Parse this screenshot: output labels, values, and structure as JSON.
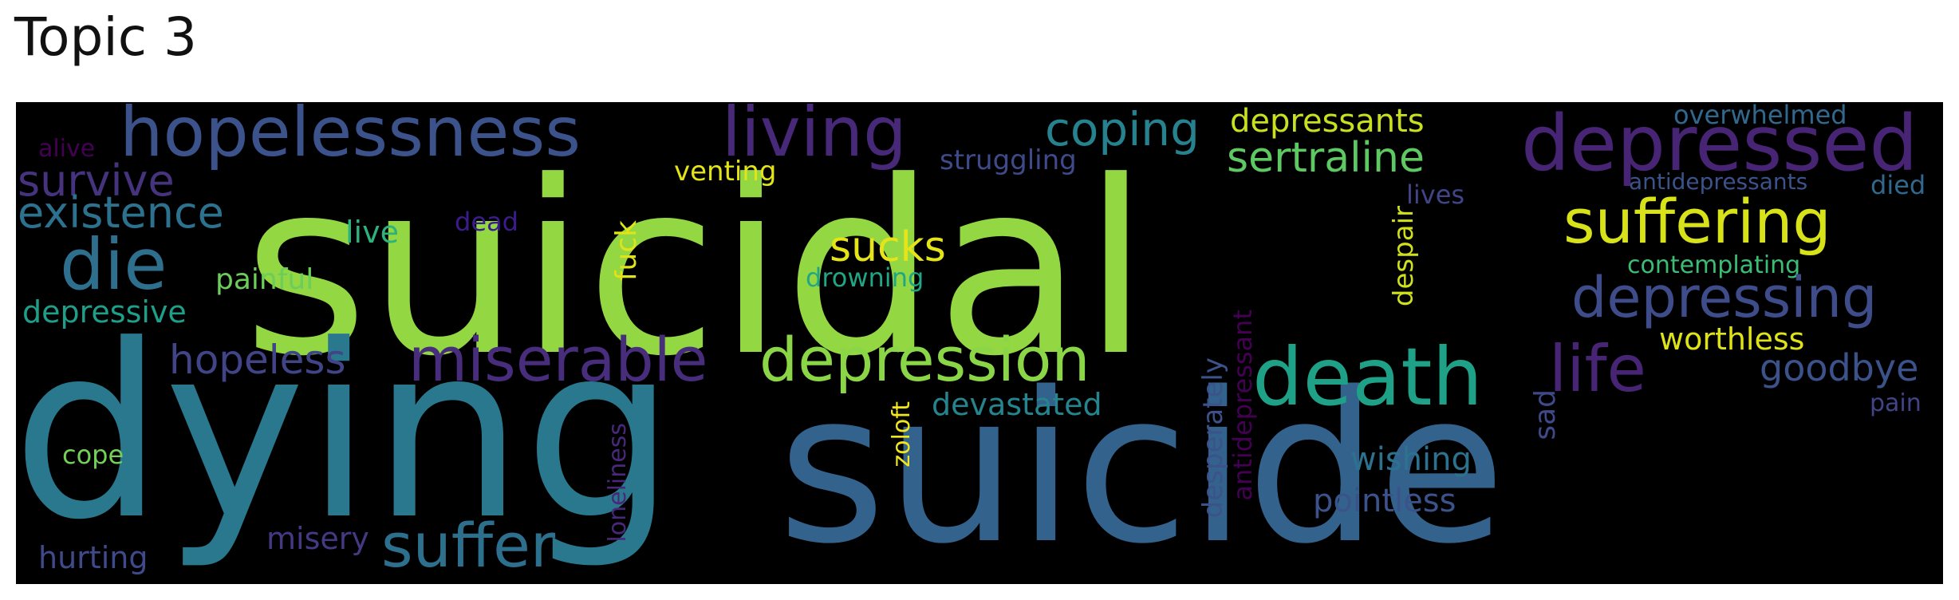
{
  "title": "Topic 3",
  "colors": {
    "background": "#000000",
    "title": "#111111"
  },
  "words": [
    {
      "text": "suicidal",
      "color": "#93d742"
    },
    {
      "text": "dying",
      "color": "#2a788e"
    },
    {
      "text": "suicide",
      "color": "#33638d"
    },
    {
      "text": "hopelessness",
      "color": "#3b528b"
    },
    {
      "text": "living",
      "color": "#482878"
    },
    {
      "text": "coping",
      "color": "#26828e"
    },
    {
      "text": "depressants",
      "color": "#c8e020"
    },
    {
      "text": "depressed",
      "color": "#482475"
    },
    {
      "text": "overwhelmed",
      "color": "#31688e"
    },
    {
      "text": "alive",
      "color": "#440154"
    },
    {
      "text": "venting",
      "color": "#e3e418"
    },
    {
      "text": "struggling",
      "color": "#3e4a89"
    },
    {
      "text": "sertraline",
      "color": "#5ec962"
    },
    {
      "text": "survive",
      "color": "#46337e"
    },
    {
      "text": "antidepressants",
      "color": "#3b528b"
    },
    {
      "text": "died",
      "color": "#31688e"
    },
    {
      "text": "lives",
      "color": "#414487"
    },
    {
      "text": "existence",
      "color": "#2c718e"
    },
    {
      "text": "dead",
      "color": "#3b1c8c"
    },
    {
      "text": "live",
      "color": "#2db27d"
    },
    {
      "text": "sucks",
      "color": "#e5e419"
    },
    {
      "text": "fuck",
      "color": "#dfe318"
    },
    {
      "text": "suffering",
      "color": "#d8e219"
    },
    {
      "text": "die",
      "color": "#2e6f8e"
    },
    {
      "text": "despair",
      "color": "#d0e11c"
    },
    {
      "text": "contemplating",
      "color": "#3dbc74"
    },
    {
      "text": "painful",
      "color": "#6ccd5a"
    },
    {
      "text": "drowning",
      "color": "#21a685"
    },
    {
      "text": "depressing",
      "color": "#3e4c8a"
    },
    {
      "text": "depressive",
      "color": "#1f9e89"
    },
    {
      "text": "worthless",
      "color": "#dde318"
    },
    {
      "text": "miserable",
      "color": "#472d7b"
    },
    {
      "text": "depression",
      "color": "#8bd646"
    },
    {
      "text": "antidepressant",
      "color": "#440154"
    },
    {
      "text": "hopeless",
      "color": "#414487"
    },
    {
      "text": "death",
      "color": "#1fa187"
    },
    {
      "text": "life",
      "color": "#482475"
    },
    {
      "text": "goodbye",
      "color": "#3b528b"
    },
    {
      "text": "desperately",
      "color": "#3b528b"
    },
    {
      "text": "devastated",
      "color": "#25848e"
    },
    {
      "text": "sad",
      "color": "#3e4a89"
    },
    {
      "text": "pain",
      "color": "#414487"
    },
    {
      "text": "loneliness",
      "color": "#482878"
    },
    {
      "text": "zoloft",
      "color": "#f1e51d"
    },
    {
      "text": "cope",
      "color": "#73d056"
    },
    {
      "text": "wishing",
      "color": "#2c728e"
    },
    {
      "text": "pointless",
      "color": "#3b528b"
    },
    {
      "text": "misery",
      "color": "#443983"
    },
    {
      "text": "suffer",
      "color": "#2d708e"
    },
    {
      "text": "hurting",
      "color": "#3e4a89"
    }
  ]
}
